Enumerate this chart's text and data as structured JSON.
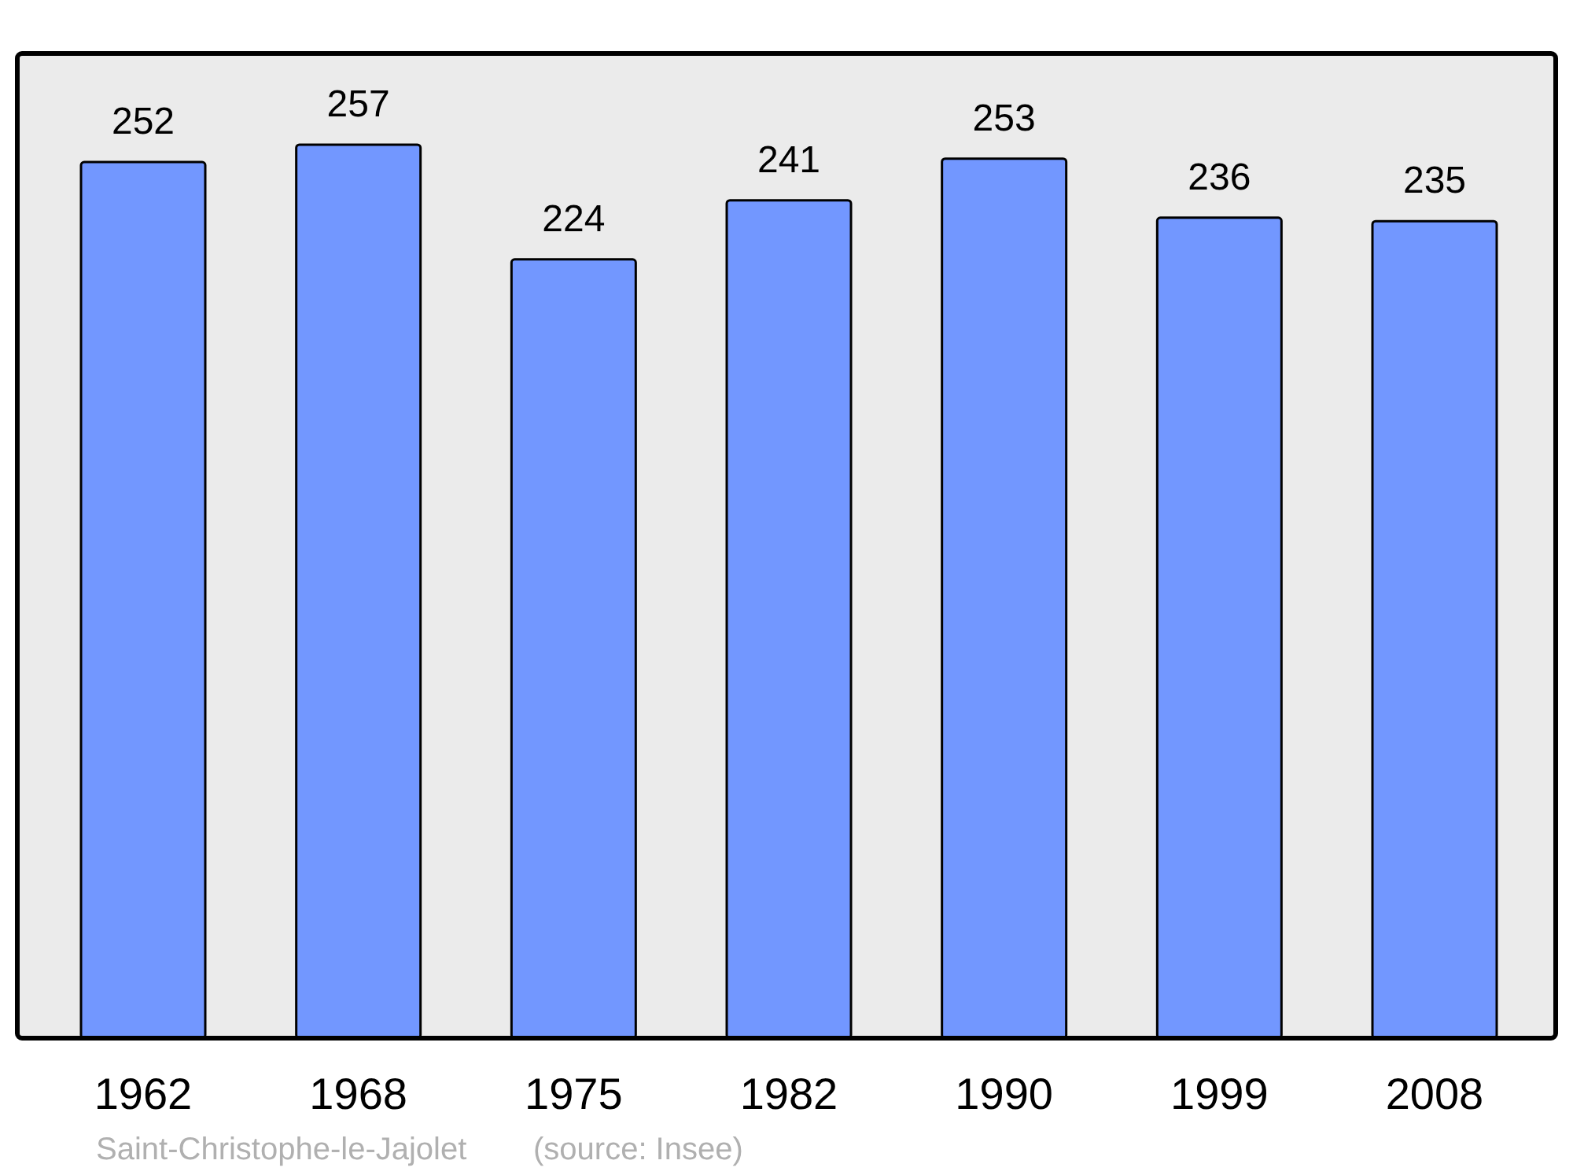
{
  "chart_data": {
    "type": "bar",
    "categories": [
      "1962",
      "1968",
      "1975",
      "1982",
      "1990",
      "1999",
      "2008"
    ],
    "values": [
      252,
      257,
      224,
      241,
      253,
      236,
      235
    ],
    "color": "#7297ff",
    "data_labels": true,
    "annotations": [
      "Saint-Christophe-le-Jajolet",
      "(source: Insee)"
    ]
  }
}
